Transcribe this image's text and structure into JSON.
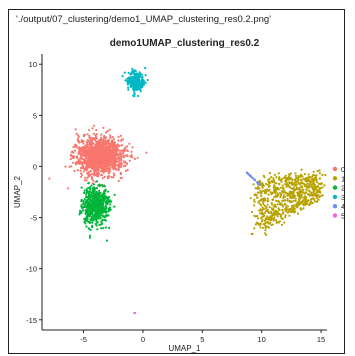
{
  "filename_label": "'./output/07_clustering/demo1_UMAP_clustering_res0.2.png'",
  "chart_data": {
    "type": "scatter",
    "title": "demo1UMAP_clustering_res0.2",
    "xlabel": "UMAP_1",
    "ylabel": "UMAP_2",
    "xlim": [
      -8.5,
      15.5
    ],
    "ylim": [
      -16,
      11
    ],
    "xticks": [
      -5,
      0,
      5,
      10,
      15
    ],
    "yticks": [
      10,
      5,
      0,
      -5,
      -10,
      -15
    ],
    "grid": false,
    "legend_position": "right",
    "series": [
      {
        "name": "0",
        "color": "#F8766D",
        "center": [
          -3.6,
          1.0
        ],
        "spread": [
          2.0,
          1.8
        ],
        "count": 1300
      },
      {
        "name": "1",
        "color": "#B8A200",
        "center": [
          11.0,
          -4.0
        ],
        "spread": [
          2.6,
          1.8
        ],
        "count": 700
      },
      {
        "name": "2",
        "color": "#00B53A",
        "center": [
          -4.0,
          -3.8
        ],
        "spread": [
          1.1,
          1.8
        ],
        "count": 650
      },
      {
        "name": "3",
        "color": "#00B8C4",
        "center": [
          -0.6,
          8.3
        ],
        "spread": [
          0.7,
          0.9
        ],
        "count": 260
      },
      {
        "name": "4",
        "color": "#6C8EF5",
        "center": [
          9.3,
          -1.2
        ],
        "spread": [
          0.5,
          0.7
        ],
        "count": 25
      },
      {
        "name": "5",
        "color": "#F564E3",
        "center": [
          -0.7,
          -14.3
        ],
        "spread": [
          0.05,
          0.05
        ],
        "count": 2
      }
    ]
  }
}
